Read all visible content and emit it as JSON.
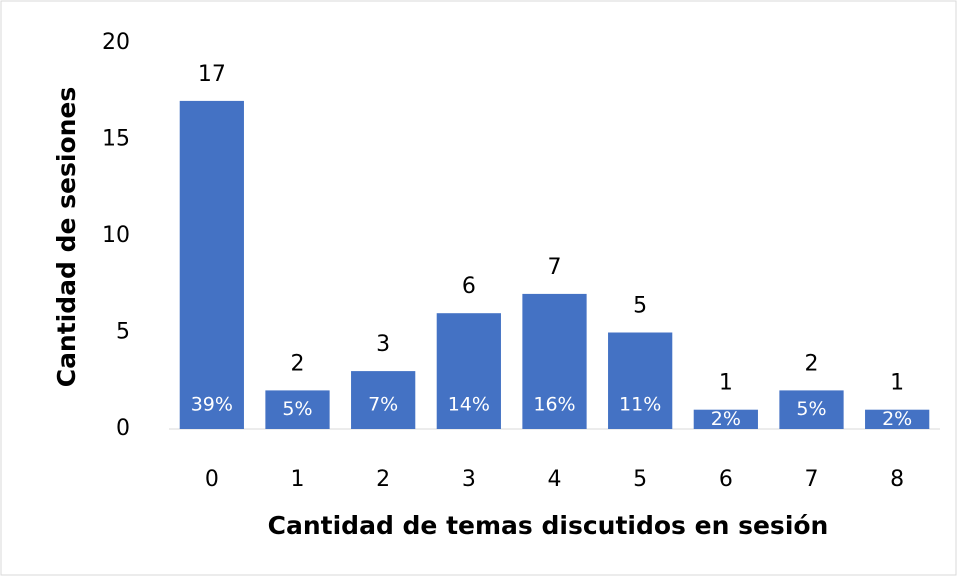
{
  "chart_data": {
    "type": "bar",
    "x_label": "Cantidad de temas discutidos en sesión",
    "y_label": "Cantidad de sesiones",
    "categories": [
      "0",
      "1",
      "2",
      "3",
      "4",
      "5",
      "6",
      "7",
      "8"
    ],
    "values": [
      17,
      2,
      3,
      6,
      7,
      5,
      1,
      2,
      1
    ],
    "percent_labels": [
      "39%",
      "5%",
      "7%",
      "14%",
      "16%",
      "11%",
      "2%",
      "5%",
      "2%"
    ],
    "color": "#4472c4",
    "ylim": [
      0,
      20
    ],
    "yticks": [
      0,
      5,
      10,
      15,
      20
    ],
    "grid": false
  }
}
